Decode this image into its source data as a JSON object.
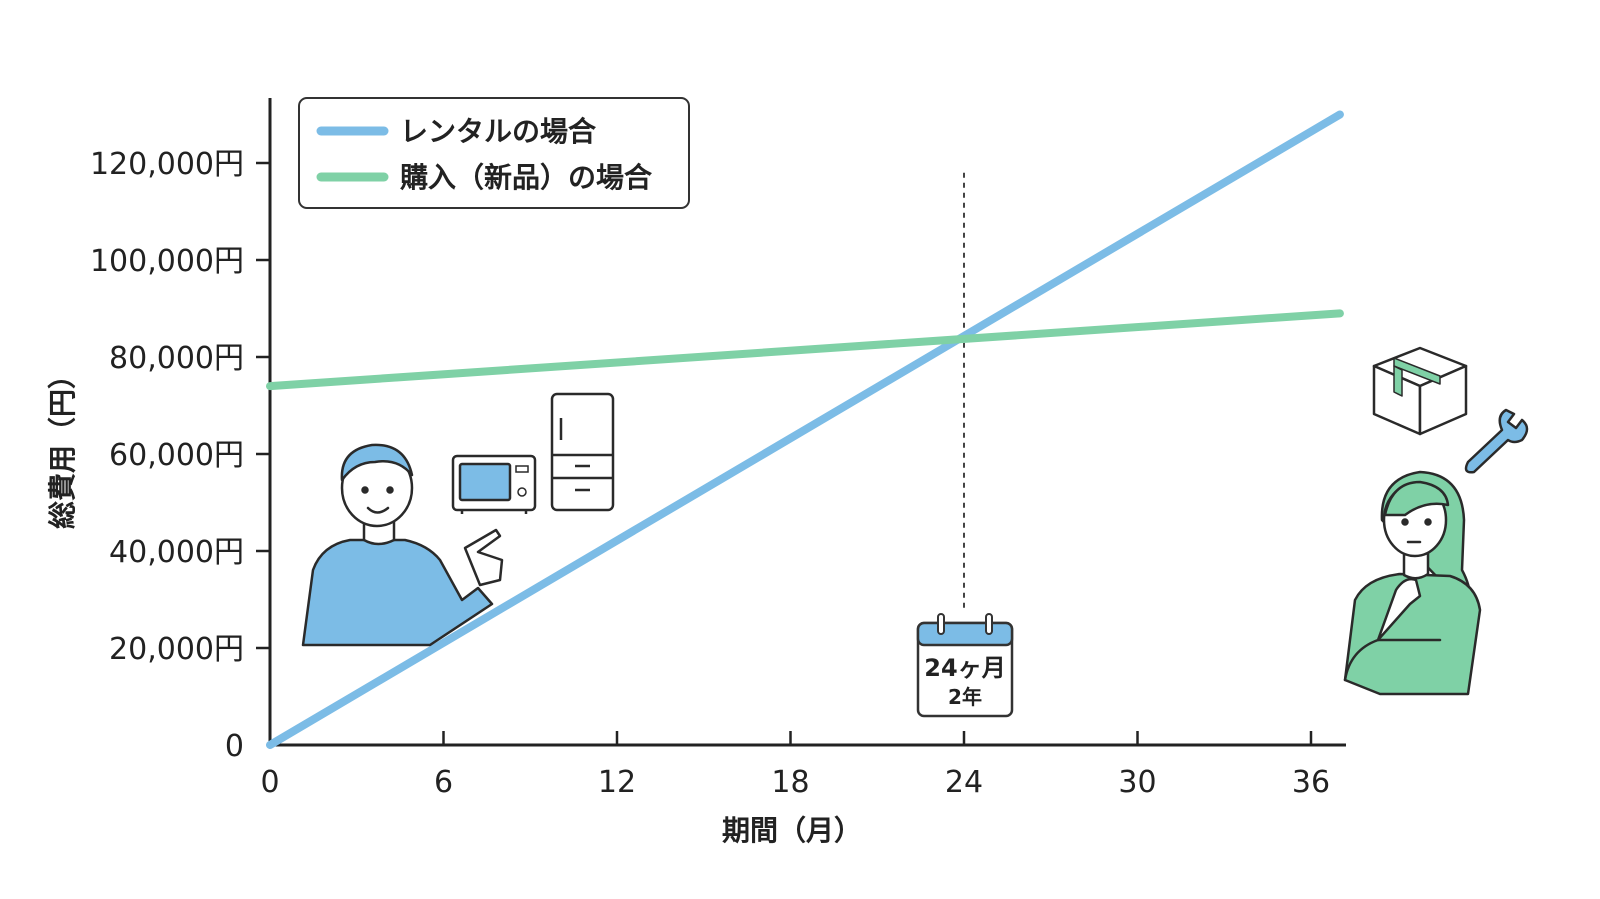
{
  "chart_data": {
    "type": "line",
    "title": "",
    "xlabel": "期間（月）",
    "ylabel": "総費用（円）",
    "xlim": [
      0,
      37
    ],
    "ylim": [
      0,
      130000
    ],
    "x_ticks": [
      0,
      6,
      12,
      18,
      24,
      30,
      36
    ],
    "x_tick_labels": [
      "0",
      "6",
      "12",
      "18",
      "24",
      "30",
      "36"
    ],
    "y_ticks": [
      0,
      20000,
      40000,
      60000,
      80000,
      100000,
      120000
    ],
    "y_tick_labels": [
      "0",
      "20,000円",
      "40,000円",
      "60,000円",
      "80,000円",
      "100,000円",
      "120,000円"
    ],
    "grid": false,
    "legend_position": "top-left",
    "series": [
      {
        "name": "レンタルの場合",
        "color": "#7cbce6",
        "x": [
          0,
          37
        ],
        "y": [
          0,
          130000
        ]
      },
      {
        "name": "購入（新品）の場合",
        "color": "#7fd1a6",
        "x": [
          0,
          37
        ],
        "y": [
          74000,
          89000
        ]
      }
    ],
    "annotations": [
      {
        "type": "vertical-dashed-line",
        "x": 24,
        "y_top": 118000
      },
      {
        "type": "calendar-icon",
        "x": 24,
        "line1": "24ヶ月",
        "line2": "2年"
      }
    ]
  },
  "illustrations": [
    {
      "name": "person-pointing-icon",
      "color": "#7cbce6"
    },
    {
      "name": "microwave-icon"
    },
    {
      "name": "refrigerator-icon"
    },
    {
      "name": "cardboard-box-icon",
      "color": "#7fd1a6"
    },
    {
      "name": "wrench-icon",
      "color": "#7cbce6"
    },
    {
      "name": "thinking-woman-icon",
      "color": "#7fd1a6"
    }
  ]
}
